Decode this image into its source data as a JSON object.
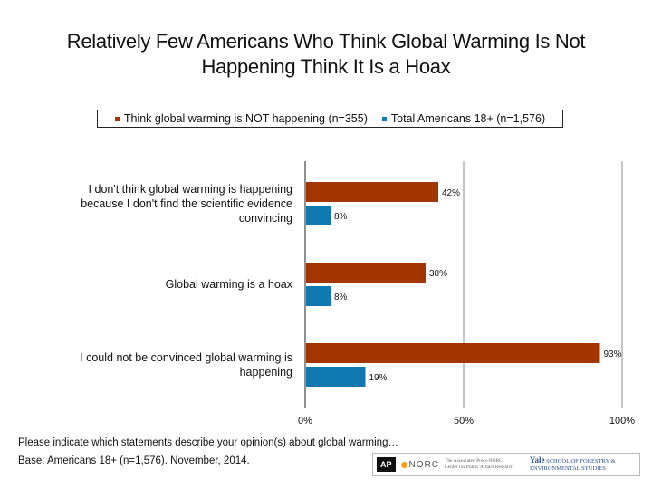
{
  "title_line1": "Relatively Few Americans Who Think Global Warming Is Not",
  "title_line2": "Happening Think It Is a Hoax",
  "footnote_question": "Please indicate which statements describe your opinion(s) about global warming…",
  "footnote_base": "Base: Americans 18+ (n=1,576). November, 2014.",
  "logos": {
    "ap": "AP",
    "norc": "NORC",
    "ap_norc_line1": "The Associated Press-NORC",
    "ap_norc_line2": "Center for Public Affairs Research",
    "yale_brand": "Yale",
    "yale_line1": "SCHOOL OF FORESTRY &",
    "yale_line2": "ENVIRONMENTAL STUDIES"
  },
  "chart_data": {
    "type": "bar",
    "orientation": "horizontal",
    "title": "Relatively Few Americans Who Think Global Warming Is Not Happening Think It Is a Hoax",
    "categories": [
      [
        "I don't think global warming is happening",
        "because I don't find the scientific evidence",
        "convincing"
      ],
      [
        "Global warming is a hoax"
      ],
      [
        "I could not be convinced global warming is",
        "happening"
      ]
    ],
    "series": [
      {
        "name": "Think global warming is NOT happening (n=355)",
        "color": "#a33500",
        "values": [
          42,
          38,
          93
        ],
        "labels": [
          "42%",
          "38%",
          "93%"
        ]
      },
      {
        "name": "Total Americans 18+ (n=1,576)",
        "color": "#0f79b0",
        "values": [
          8,
          8,
          19
        ],
        "labels": [
          "8%",
          "8%",
          "19%"
        ]
      }
    ],
    "xlim": [
      0,
      100
    ],
    "ticks": [
      0,
      50,
      100
    ],
    "tick_labels": [
      "0%",
      "50%",
      "100%"
    ],
    "grid": true,
    "legend_position": "top"
  }
}
